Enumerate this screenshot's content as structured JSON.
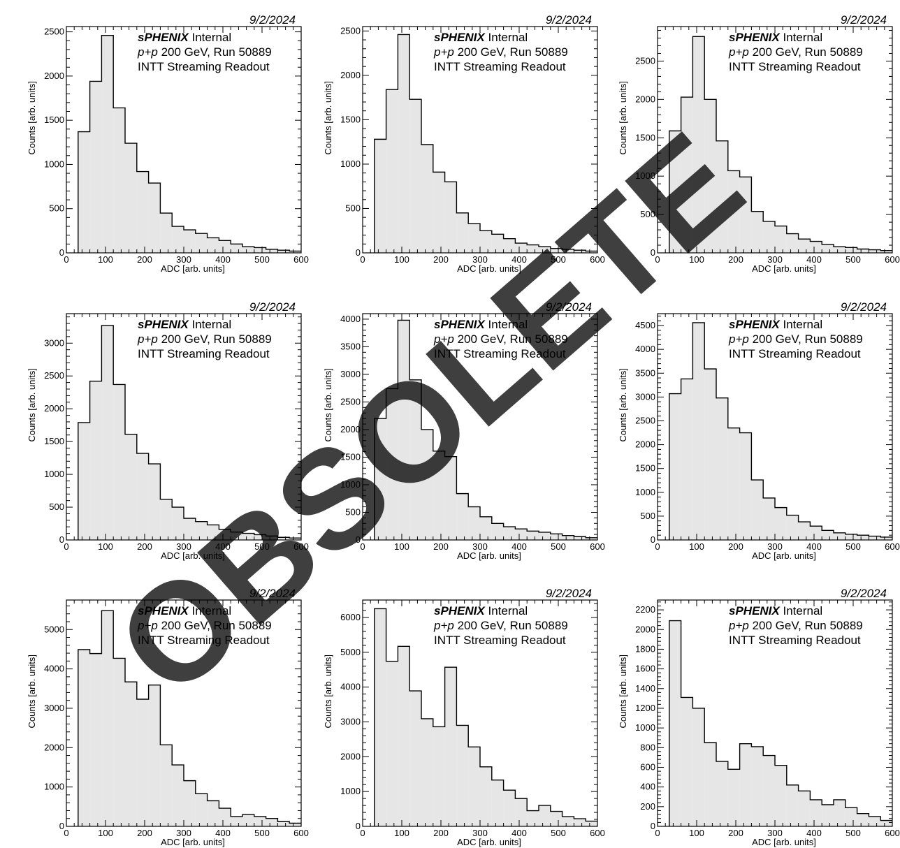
{
  "common": {
    "date": "9/2/2024",
    "label_bold": "sPHENIX",
    "label_internal": " Internal",
    "label_pp": "p+p",
    "label_run": " 200 GeV, Run 50889",
    "label_readout": "INTT Streaming Readout",
    "xlabel": "ADC [arb. units]",
    "ylabel": "Counts [arb. units]"
  },
  "watermark": "OBSOLETE",
  "chart_data": [
    {
      "type": "bar",
      "title": "",
      "xlabel": "ADC [arb. units]",
      "ylabel": "Counts [arb. units]",
      "xlim": [
        0,
        600
      ],
      "ylim": [
        0,
        2560
      ],
      "yticks": [
        0,
        500,
        1000,
        1500,
        2000,
        2500
      ],
      "bin_edges": [
        30,
        60,
        90,
        120,
        150,
        180,
        210,
        240,
        270,
        300,
        330,
        360,
        390,
        420,
        450,
        480,
        510,
        540,
        570,
        600
      ],
      "values": [
        1370,
        1940,
        2460,
        1640,
        1240,
        920,
        790,
        450,
        300,
        260,
        220,
        170,
        140,
        100,
        70,
        60,
        40,
        30,
        20
      ]
    },
    {
      "type": "bar",
      "title": "",
      "xlabel": "ADC [arb. units]",
      "ylabel": "Counts [arb. units]",
      "xlim": [
        0,
        600
      ],
      "ylim": [
        0,
        2550
      ],
      "yticks": [
        0,
        500,
        1000,
        1500,
        2000,
        2500
      ],
      "bin_edges": [
        30,
        60,
        90,
        120,
        150,
        180,
        210,
        240,
        270,
        300,
        330,
        360,
        390,
        420,
        450,
        480,
        510,
        540,
        570,
        600
      ],
      "values": [
        1280,
        1840,
        2460,
        1730,
        1220,
        910,
        800,
        450,
        330,
        250,
        210,
        160,
        110,
        90,
        70,
        50,
        40,
        30,
        20
      ]
    },
    {
      "type": "bar",
      "title": "",
      "xlabel": "ADC [arb. units]",
      "ylabel": "Counts [arb. units]",
      "xlim": [
        0,
        600
      ],
      "ylim": [
        0,
        2950
      ],
      "yticks": [
        0,
        500,
        1000,
        1500,
        2000,
        2500
      ],
      "bin_edges": [
        30,
        60,
        90,
        120,
        150,
        180,
        210,
        240,
        270,
        300,
        330,
        360,
        390,
        420,
        450,
        480,
        510,
        540,
        570,
        600
      ],
      "values": [
        1590,
        2030,
        2820,
        2000,
        1460,
        1070,
        990,
        540,
        410,
        350,
        250,
        180,
        150,
        110,
        80,
        70,
        50,
        40,
        30
      ]
    },
    {
      "type": "bar",
      "title": "",
      "xlabel": "ADC [arb. units]",
      "ylabel": "Counts [arb. units]",
      "xlim": [
        0,
        600
      ],
      "ylim": [
        0,
        3450
      ],
      "yticks": [
        0,
        500,
        1000,
        1500,
        2000,
        2500,
        3000
      ],
      "bin_edges": [
        30,
        60,
        90,
        120,
        150,
        180,
        210,
        240,
        270,
        300,
        330,
        360,
        390,
        420,
        450,
        480,
        510,
        540,
        570,
        600
      ],
      "values": [
        1790,
        2420,
        3270,
        2370,
        1610,
        1320,
        1160,
        620,
        500,
        330,
        280,
        230,
        160,
        120,
        100,
        80,
        60,
        40,
        30
      ]
    },
    {
      "type": "bar",
      "title": "",
      "xlabel": "ADC [arb. units]",
      "ylabel": "Counts [arb. units]",
      "xlim": [
        0,
        600
      ],
      "ylim": [
        0,
        4100
      ],
      "yticks": [
        0,
        500,
        1000,
        1500,
        2000,
        2500,
        3000,
        3500,
        4000
      ],
      "bin_edges": [
        30,
        60,
        90,
        120,
        150,
        180,
        210,
        240,
        270,
        300,
        330,
        360,
        390,
        420,
        450,
        480,
        510,
        540,
        570,
        600
      ],
      "values": [
        2200,
        2740,
        3980,
        2900,
        2000,
        1610,
        1510,
        840,
        600,
        420,
        300,
        240,
        200,
        160,
        140,
        110,
        80,
        60,
        40
      ]
    },
    {
      "type": "bar",
      "title": "",
      "xlabel": "ADC [arb. units]",
      "ylabel": "Counts [arb. units]",
      "xlim": [
        0,
        600
      ],
      "ylim": [
        0,
        4750
      ],
      "yticks": [
        0,
        500,
        1000,
        1500,
        2000,
        2500,
        3000,
        3500,
        4000,
        4500
      ],
      "bin_edges": [
        30,
        60,
        90,
        120,
        150,
        180,
        210,
        240,
        270,
        300,
        330,
        360,
        390,
        420,
        450,
        480,
        510,
        540,
        570,
        600
      ],
      "values": [
        3070,
        3380,
        4560,
        3590,
        2980,
        2350,
        2250,
        1260,
        880,
        680,
        520,
        380,
        290,
        200,
        150,
        120,
        100,
        80,
        60
      ]
    },
    {
      "type": "bar",
      "title": "",
      "xlabel": "ADC [arb. units]",
      "ylabel": "Counts [arb. units]",
      "xlim": [
        0,
        600
      ],
      "ylim": [
        0,
        5750
      ],
      "yticks": [
        0,
        1000,
        2000,
        3000,
        4000,
        5000
      ],
      "bin_edges": [
        30,
        60,
        90,
        120,
        150,
        180,
        210,
        240,
        270,
        300,
        330,
        360,
        390,
        420,
        450,
        480,
        510,
        540,
        570,
        600
      ],
      "values": [
        4490,
        4390,
        5480,
        4270,
        3670,
        3230,
        3590,
        2070,
        1560,
        1160,
        830,
        650,
        460,
        250,
        300,
        250,
        200,
        120,
        80
      ]
    },
    {
      "type": "bar",
      "title": "",
      "xlabel": "ADC [arb. units]",
      "ylabel": "Counts [arb. units]",
      "xlim": [
        0,
        600
      ],
      "ylim": [
        0,
        6500
      ],
      "yticks": [
        0,
        1000,
        2000,
        3000,
        4000,
        5000,
        6000
      ],
      "bin_edges": [
        30,
        60,
        90,
        120,
        150,
        180,
        210,
        240,
        270,
        300,
        330,
        360,
        390,
        420,
        450,
        480,
        510,
        540,
        570,
        600
      ],
      "values": [
        6250,
        4740,
        5170,
        3890,
        3090,
        2860,
        4570,
        2900,
        2280,
        1710,
        1330,
        1040,
        800,
        450,
        600,
        430,
        280,
        220,
        150
      ]
    },
    {
      "type": "bar",
      "title": "",
      "xlabel": "ADC [arb. units]",
      "ylabel": "Counts [arb. units]",
      "xlim": [
        0,
        600
      ],
      "ylim": [
        0,
        2300
      ],
      "yticks": [
        0,
        200,
        400,
        600,
        800,
        1000,
        1200,
        1400,
        1600,
        1800,
        2000,
        2200
      ],
      "bin_edges": [
        30,
        60,
        90,
        120,
        150,
        180,
        210,
        240,
        270,
        300,
        330,
        360,
        390,
        420,
        450,
        480,
        510,
        540,
        570,
        600
      ],
      "values": [
        2090,
        1310,
        1200,
        850,
        660,
        580,
        840,
        810,
        720,
        620,
        420,
        360,
        270,
        220,
        270,
        190,
        130,
        100,
        60
      ]
    }
  ]
}
